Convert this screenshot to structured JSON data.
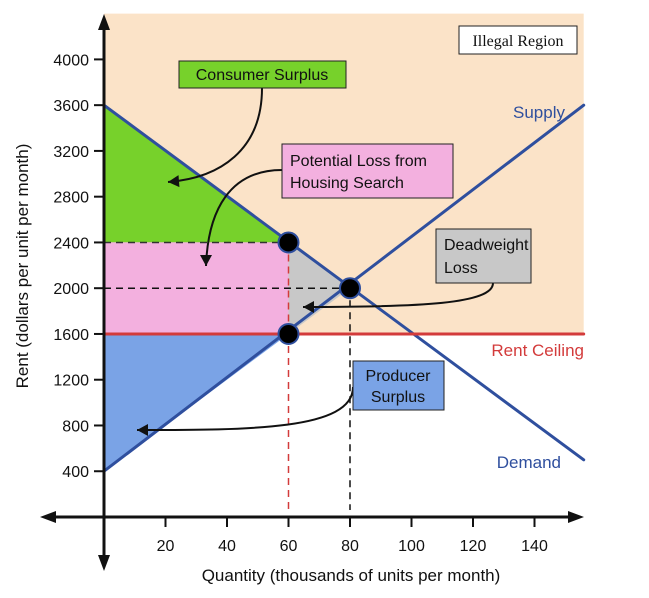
{
  "chart_data": {
    "type": "line",
    "xlabel": "Quantity (thousands of units per month)",
    "ylabel": "Rent (dollars per unit per month)",
    "xlim": [
      0,
      160
    ],
    "ylim": [
      0,
      4400
    ],
    "x_ticks": [
      20,
      40,
      60,
      80,
      100,
      120,
      140
    ],
    "y_ticks": [
      400,
      800,
      1200,
      1600,
      2000,
      2400,
      2800,
      3200,
      3600,
      4000
    ],
    "series": [
      {
        "name": "Supply",
        "x": [
          0,
          156
        ],
        "y": [
          400,
          3600
        ],
        "color": "#2f4f9e"
      },
      {
        "name": "Demand",
        "x": [
          0,
          156
        ],
        "y": [
          3600,
          500
        ],
        "color": "#2f4f9e"
      },
      {
        "name": "Rent Ceiling",
        "x": [
          0,
          156
        ],
        "y": [
          1600,
          1600
        ],
        "color": "#d33b3b"
      }
    ],
    "points": [
      {
        "x": 60,
        "y": 2400
      },
      {
        "x": 80,
        "y": 2000
      },
      {
        "x": 60,
        "y": 1600
      }
    ],
    "regions": {
      "consumer_surplus": {
        "color": "#77d12b",
        "points": [
          [
            0,
            3600
          ],
          [
            60,
            2400
          ],
          [
            0,
            2400
          ]
        ]
      },
      "housing_search_loss": {
        "color": "#f3b0df",
        "points": [
          [
            0,
            2400
          ],
          [
            60,
            2400
          ],
          [
            60,
            1600
          ],
          [
            0,
            1600
          ]
        ]
      },
      "deadweight_loss": {
        "color": "#c8c8c8",
        "points": [
          [
            60,
            2400
          ],
          [
            80,
            2000
          ],
          [
            60,
            1600
          ]
        ]
      },
      "producer_surplus": {
        "color": "#7aa3e6",
        "points": [
          [
            0,
            1600
          ],
          [
            60,
            1600
          ],
          [
            0,
            400
          ]
        ]
      },
      "illegal_region": {
        "color": "#fbe3c8",
        "points": [
          [
            0,
            4400
          ],
          [
            156,
            4400
          ],
          [
            156,
            1600
          ],
          [
            0,
            1600
          ]
        ]
      }
    },
    "annotations": {
      "illegal_region": "Illegal Region",
      "consumer_surplus": "Consumer Surplus",
      "housing_search_line1": "Potential Loss from",
      "housing_search_line2": "Housing Search",
      "deadweight_line1": "Deadweight",
      "deadweight_line2": "Loss",
      "producer_line1": "Producer",
      "producer_line2": "Surplus"
    },
    "colors": {
      "curve": "#2f4f9e",
      "ceiling": "#d33b3b",
      "axis": "#111111",
      "illegal_region": "#fbe3c8",
      "consumer_surplus": "#77d12b",
      "housing_search": "#f3b0df",
      "deadweight": "#c8c8c8",
      "producer_surplus": "#7aa3e6"
    }
  }
}
